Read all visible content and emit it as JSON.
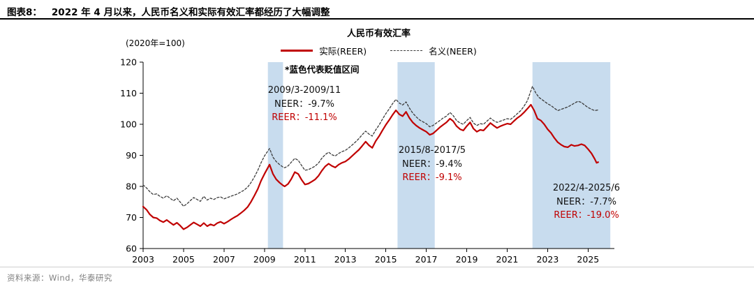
{
  "colors": {
    "reer_red": "#c00000",
    "neer_dark": "#3c3c3c",
    "band_blue": "#c8dcee",
    "source_gray": "#808080"
  },
  "header": {
    "figure_label": "图表8：",
    "title": "2022 年 4 月以来，人民币名义和实际有效汇率都经历了大幅调整"
  },
  "chart": {
    "title": "人民币有效汇率",
    "unit_note": "(2020年=100)",
    "band_note": "*蓝色代表贬值区间",
    "legend": [
      {
        "label": "实际(REER)"
      },
      {
        "label": "名义(NEER)"
      }
    ]
  },
  "annotations": [
    {
      "period": "2009/3-2009/11",
      "neer": "NEER：-9.7%",
      "reer": "REER：-11.1%"
    },
    {
      "period": "2015/8-2017/5",
      "neer": "NEER：-9.4%",
      "reer": "REER：-9.1%"
    },
    {
      "period": "2022/4-2025/6",
      "neer": "NEER：-7.7%",
      "reer": "REER：-19.0%"
    }
  ],
  "footer": {
    "source": "资料来源：Wind，华泰研究"
  },
  "chart_data": {
    "type": "line",
    "title": "人民币有效汇率",
    "subtitle": "(2020年=100)",
    "xlim": [
      2003,
      2026.3
    ],
    "ylim": [
      60,
      120
    ],
    "yticks": [
      60,
      70,
      80,
      90,
      100,
      110,
      120
    ],
    "xticks": [
      2003,
      2005,
      2007,
      2009,
      2011,
      2013,
      2015,
      2017,
      2019,
      2021,
      2023,
      2025
    ],
    "grid": false,
    "legend_position": "top",
    "shaded_regions": [
      {
        "label": "2009/3-2009/11",
        "start": 2009.17,
        "end": 2009.92,
        "neer_change_pct": -9.7,
        "reer_change_pct": -11.1
      },
      {
        "label": "2015/8-2017/5",
        "start": 2015.58,
        "end": 2017.42,
        "neer_change_pct": -9.4,
        "reer_change_pct": -9.1
      },
      {
        "label": "2022/4-2025/6",
        "start": 2022.25,
        "end": 2026.1,
        "neer_change_pct": -7.7,
        "reer_change_pct": -19.0
      }
    ],
    "series": [
      {
        "name": "实际(REER)",
        "style": "solid",
        "width": 2.2,
        "points": [
          [
            2003.0,
            73.5
          ],
          [
            2003.17,
            72.5
          ],
          [
            2003.33,
            71.0
          ],
          [
            2003.5,
            70.0
          ],
          [
            2003.67,
            69.8
          ],
          [
            2003.83,
            69.0
          ],
          [
            2004.0,
            68.5
          ],
          [
            2004.17,
            69.2
          ],
          [
            2004.33,
            68.4
          ],
          [
            2004.5,
            67.6
          ],
          [
            2004.67,
            68.3
          ],
          [
            2004.83,
            67.4
          ],
          [
            2005.0,
            66.2
          ],
          [
            2005.17,
            66.8
          ],
          [
            2005.33,
            67.6
          ],
          [
            2005.5,
            68.4
          ],
          [
            2005.67,
            67.8
          ],
          [
            2005.83,
            67.2
          ],
          [
            2006.0,
            68.2
          ],
          [
            2006.17,
            67.2
          ],
          [
            2006.33,
            67.8
          ],
          [
            2006.5,
            67.4
          ],
          [
            2006.67,
            68.2
          ],
          [
            2006.83,
            68.6
          ],
          [
            2007.0,
            68.0
          ],
          [
            2007.17,
            68.6
          ],
          [
            2007.33,
            69.3
          ],
          [
            2007.5,
            70.0
          ],
          [
            2007.67,
            70.6
          ],
          [
            2007.83,
            71.4
          ],
          [
            2008.0,
            72.3
          ],
          [
            2008.17,
            73.4
          ],
          [
            2008.33,
            75.0
          ],
          [
            2008.5,
            77.0
          ],
          [
            2008.67,
            79.2
          ],
          [
            2008.83,
            81.8
          ],
          [
            2009.0,
            84.0
          ],
          [
            2009.25,
            87.0
          ],
          [
            2009.42,
            84.0
          ],
          [
            2009.58,
            82.3
          ],
          [
            2009.75,
            81.2
          ],
          [
            2009.92,
            80.3
          ],
          [
            2010.0,
            80.0
          ],
          [
            2010.17,
            80.8
          ],
          [
            2010.33,
            82.4
          ],
          [
            2010.5,
            84.6
          ],
          [
            2010.67,
            84.0
          ],
          [
            2010.83,
            82.2
          ],
          [
            2011.0,
            80.6
          ],
          [
            2011.17,
            80.9
          ],
          [
            2011.33,
            81.5
          ],
          [
            2011.5,
            82.2
          ],
          [
            2011.67,
            83.4
          ],
          [
            2011.83,
            85.0
          ],
          [
            2012.0,
            86.4
          ],
          [
            2012.17,
            87.3
          ],
          [
            2012.33,
            86.6
          ],
          [
            2012.5,
            86.1
          ],
          [
            2012.67,
            87.0
          ],
          [
            2012.83,
            87.6
          ],
          [
            2013.0,
            88.0
          ],
          [
            2013.17,
            88.8
          ],
          [
            2013.33,
            89.8
          ],
          [
            2013.5,
            90.8
          ],
          [
            2013.67,
            91.8
          ],
          [
            2013.83,
            93.0
          ],
          [
            2014.0,
            94.4
          ],
          [
            2014.17,
            93.2
          ],
          [
            2014.33,
            92.4
          ],
          [
            2014.5,
            94.6
          ],
          [
            2014.67,
            96.2
          ],
          [
            2014.83,
            98.0
          ],
          [
            2015.0,
            99.8
          ],
          [
            2015.17,
            101.4
          ],
          [
            2015.33,
            103.0
          ],
          [
            2015.5,
            104.5
          ],
          [
            2015.67,
            103.2
          ],
          [
            2015.83,
            102.6
          ],
          [
            2016.0,
            104.0
          ],
          [
            2016.17,
            102.0
          ],
          [
            2016.33,
            100.6
          ],
          [
            2016.5,
            99.6
          ],
          [
            2016.67,
            98.8
          ],
          [
            2016.83,
            98.2
          ],
          [
            2017.0,
            97.6
          ],
          [
            2017.17,
            96.6
          ],
          [
            2017.33,
            97.0
          ],
          [
            2017.5,
            98.0
          ],
          [
            2017.67,
            99.0
          ],
          [
            2017.83,
            99.8
          ],
          [
            2018.0,
            100.6
          ],
          [
            2018.17,
            101.8
          ],
          [
            2018.33,
            101.0
          ],
          [
            2018.5,
            99.4
          ],
          [
            2018.67,
            98.4
          ],
          [
            2018.83,
            98.0
          ],
          [
            2019.0,
            99.4
          ],
          [
            2019.17,
            100.6
          ],
          [
            2019.33,
            98.6
          ],
          [
            2019.5,
            97.6
          ],
          [
            2019.67,
            98.2
          ],
          [
            2019.83,
            98.0
          ],
          [
            2020.0,
            99.2
          ],
          [
            2020.17,
            100.4
          ],
          [
            2020.33,
            99.6
          ],
          [
            2020.5,
            98.8
          ],
          [
            2020.67,
            99.4
          ],
          [
            2020.83,
            99.8
          ],
          [
            2021.0,
            100.2
          ],
          [
            2021.17,
            100.0
          ],
          [
            2021.33,
            101.0
          ],
          [
            2021.5,
            102.0
          ],
          [
            2021.67,
            102.8
          ],
          [
            2021.83,
            103.8
          ],
          [
            2022.0,
            105.0
          ],
          [
            2022.17,
            106.3
          ],
          [
            2022.33,
            104.5
          ],
          [
            2022.5,
            101.8
          ],
          [
            2022.67,
            101.2
          ],
          [
            2022.83,
            100.0
          ],
          [
            2023.0,
            98.4
          ],
          [
            2023.17,
            97.2
          ],
          [
            2023.33,
            95.6
          ],
          [
            2023.5,
            94.2
          ],
          [
            2023.67,
            93.4
          ],
          [
            2023.83,
            92.8
          ],
          [
            2024.0,
            92.6
          ],
          [
            2024.17,
            93.4
          ],
          [
            2024.33,
            93.0
          ],
          [
            2024.5,
            93.2
          ],
          [
            2024.67,
            93.6
          ],
          [
            2024.83,
            93.2
          ],
          [
            2025.0,
            92.0
          ],
          [
            2025.17,
            90.6
          ],
          [
            2025.33,
            88.8
          ],
          [
            2025.42,
            87.6
          ],
          [
            2025.5,
            87.8
          ]
        ]
      },
      {
        "name": "名义(NEER)",
        "style": "dashed",
        "width": 1.3,
        "points": [
          [
            2003.0,
            80.5
          ],
          [
            2003.17,
            79.5
          ],
          [
            2003.33,
            78.3
          ],
          [
            2003.5,
            77.4
          ],
          [
            2003.67,
            77.6
          ],
          [
            2003.83,
            76.8
          ],
          [
            2004.0,
            76.2
          ],
          [
            2004.17,
            77.0
          ],
          [
            2004.33,
            76.2
          ],
          [
            2004.5,
            75.4
          ],
          [
            2004.67,
            76.2
          ],
          [
            2004.83,
            75.0
          ],
          [
            2005.0,
            73.6
          ],
          [
            2005.17,
            74.4
          ],
          [
            2005.33,
            75.4
          ],
          [
            2005.5,
            76.4
          ],
          [
            2005.67,
            75.8
          ],
          [
            2005.83,
            75.2
          ],
          [
            2006.0,
            76.8
          ],
          [
            2006.17,
            75.6
          ],
          [
            2006.33,
            76.2
          ],
          [
            2006.5,
            75.8
          ],
          [
            2006.67,
            76.4
          ],
          [
            2006.83,
            76.6
          ],
          [
            2007.0,
            76.0
          ],
          [
            2007.17,
            76.4
          ],
          [
            2007.33,
            76.8
          ],
          [
            2007.5,
            77.2
          ],
          [
            2007.67,
            77.6
          ],
          [
            2007.83,
            78.2
          ],
          [
            2008.0,
            78.8
          ],
          [
            2008.17,
            79.8
          ],
          [
            2008.33,
            81.2
          ],
          [
            2008.5,
            83.0
          ],
          [
            2008.67,
            85.2
          ],
          [
            2008.83,
            87.6
          ],
          [
            2009.0,
            89.8
          ],
          [
            2009.25,
            92.2
          ],
          [
            2009.42,
            89.4
          ],
          [
            2009.58,
            88.0
          ],
          [
            2009.75,
            87.0
          ],
          [
            2009.92,
            86.2
          ],
          [
            2010.0,
            86.0
          ],
          [
            2010.17,
            86.6
          ],
          [
            2010.33,
            87.8
          ],
          [
            2010.5,
            89.0
          ],
          [
            2010.67,
            88.4
          ],
          [
            2010.83,
            86.8
          ],
          [
            2011.0,
            85.2
          ],
          [
            2011.17,
            85.4
          ],
          [
            2011.33,
            85.9
          ],
          [
            2011.5,
            86.5
          ],
          [
            2011.67,
            87.5
          ],
          [
            2011.83,
            89.0
          ],
          [
            2012.0,
            90.2
          ],
          [
            2012.17,
            91.0
          ],
          [
            2012.33,
            90.2
          ],
          [
            2012.5,
            89.8
          ],
          [
            2012.67,
            90.6
          ],
          [
            2012.83,
            91.2
          ],
          [
            2013.0,
            91.6
          ],
          [
            2013.17,
            92.4
          ],
          [
            2013.33,
            93.3
          ],
          [
            2013.5,
            94.3
          ],
          [
            2013.67,
            95.4
          ],
          [
            2013.83,
            96.6
          ],
          [
            2014.0,
            97.8
          ],
          [
            2014.17,
            96.8
          ],
          [
            2014.33,
            96.2
          ],
          [
            2014.5,
            98.2
          ],
          [
            2014.67,
            99.8
          ],
          [
            2014.83,
            101.6
          ],
          [
            2015.0,
            103.4
          ],
          [
            2015.17,
            105.0
          ],
          [
            2015.33,
            106.6
          ],
          [
            2015.5,
            108.0
          ],
          [
            2015.67,
            106.8
          ],
          [
            2015.83,
            106.2
          ],
          [
            2016.0,
            107.2
          ],
          [
            2016.17,
            105.2
          ],
          [
            2016.33,
            103.6
          ],
          [
            2016.5,
            102.4
          ],
          [
            2016.67,
            101.4
          ],
          [
            2016.83,
            100.8
          ],
          [
            2017.0,
            100.2
          ],
          [
            2017.17,
            99.2
          ],
          [
            2017.33,
            99.6
          ],
          [
            2017.5,
            100.4
          ],
          [
            2017.67,
            101.2
          ],
          [
            2017.83,
            102.0
          ],
          [
            2018.0,
            102.6
          ],
          [
            2018.17,
            103.8
          ],
          [
            2018.33,
            102.8
          ],
          [
            2018.5,
            101.2
          ],
          [
            2018.67,
            100.4
          ],
          [
            2018.83,
            100.0
          ],
          [
            2019.0,
            101.2
          ],
          [
            2019.17,
            102.2
          ],
          [
            2019.33,
            100.4
          ],
          [
            2019.5,
            99.6
          ],
          [
            2019.67,
            100.2
          ],
          [
            2019.83,
            100.0
          ],
          [
            2020.0,
            101.0
          ],
          [
            2020.17,
            102.0
          ],
          [
            2020.33,
            101.2
          ],
          [
            2020.5,
            100.6
          ],
          [
            2020.67,
            101.0
          ],
          [
            2020.83,
            101.4
          ],
          [
            2021.0,
            101.8
          ],
          [
            2021.17,
            101.6
          ],
          [
            2021.33,
            102.4
          ],
          [
            2021.5,
            103.4
          ],
          [
            2021.67,
            104.4
          ],
          [
            2021.83,
            105.8
          ],
          [
            2022.0,
            107.6
          ],
          [
            2022.25,
            112.2
          ],
          [
            2022.42,
            110.0
          ],
          [
            2022.58,
            108.6
          ],
          [
            2022.75,
            107.8
          ],
          [
            2023.0,
            106.6
          ],
          [
            2023.17,
            106.0
          ],
          [
            2023.33,
            105.2
          ],
          [
            2023.5,
            104.4
          ],
          [
            2023.67,
            104.8
          ],
          [
            2023.83,
            105.2
          ],
          [
            2024.0,
            105.6
          ],
          [
            2024.17,
            106.2
          ],
          [
            2024.33,
            106.8
          ],
          [
            2024.5,
            107.4
          ],
          [
            2024.67,
            107.0
          ],
          [
            2024.83,
            106.2
          ],
          [
            2025.0,
            105.4
          ],
          [
            2025.17,
            104.8
          ],
          [
            2025.33,
            104.4
          ],
          [
            2025.5,
            104.6
          ]
        ]
      }
    ]
  }
}
